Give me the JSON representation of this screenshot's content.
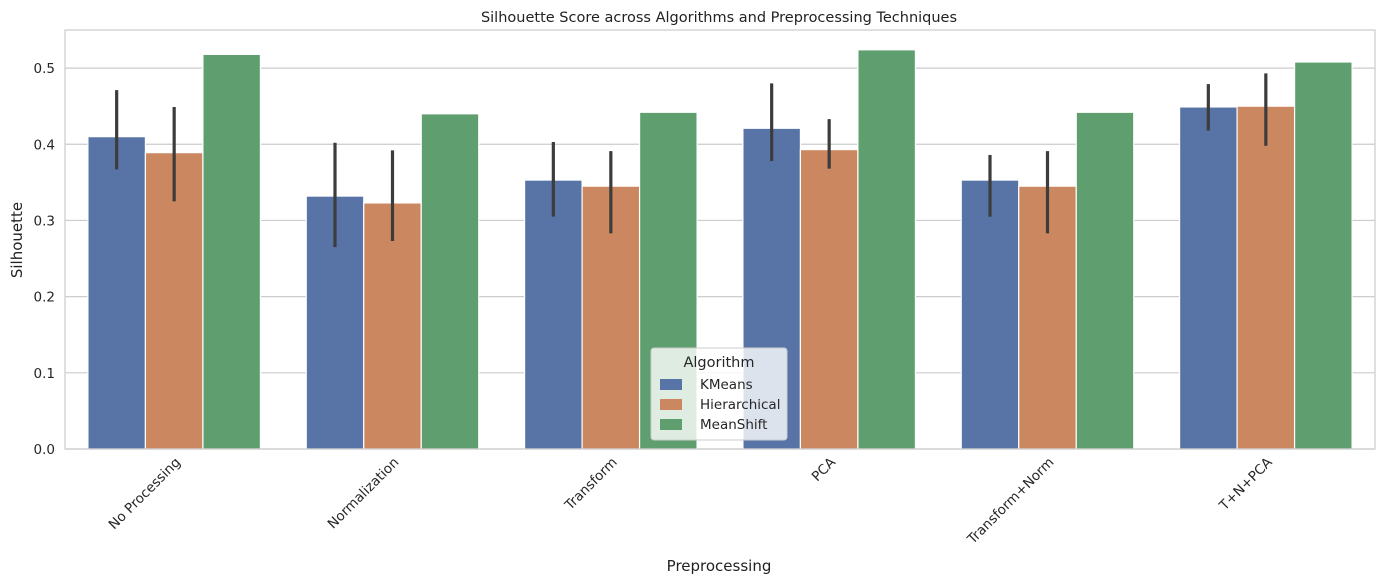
{
  "chart_data": {
    "type": "bar",
    "title": "Silhouette Score across Algorithms and Preprocessing Techniques",
    "xlabel": "Preprocessing",
    "ylabel": "Silhouette",
    "ylim": [
      0,
      0.55
    ],
    "yticks": [
      "0.0",
      "0.1",
      "0.2",
      "0.3",
      "0.4",
      "0.5"
    ],
    "grid": "horizontal",
    "legend": {
      "title": "Algorithm",
      "placement": "lower-center"
    },
    "categories": [
      "No Processing",
      "Normalization",
      "Transform",
      "PCA",
      "Transform+Norm",
      "T+N+PCA"
    ],
    "series": [
      {
        "name": "KMeans",
        "color": "#5874a6",
        "values": [
          0.41,
          0.332,
          0.353,
          0.421,
          0.353,
          0.449
        ],
        "error_low": [
          0.367,
          0.265,
          0.305,
          0.378,
          0.305,
          0.418
        ],
        "error_high": [
          0.471,
          0.402,
          0.403,
          0.48,
          0.386,
          0.479
        ]
      },
      {
        "name": "Hierarchical",
        "color": "#cb8760",
        "values": [
          0.389,
          0.323,
          0.345,
          0.393,
          0.345,
          0.45
        ],
        "error_low": [
          0.325,
          0.273,
          0.283,
          0.368,
          0.283,
          0.398
        ],
        "error_high": [
          0.449,
          0.392,
          0.391,
          0.433,
          0.391,
          0.493
        ]
      },
      {
        "name": "MeanShift",
        "color": "#5f9e6e",
        "values": [
          0.518,
          0.44,
          0.442,
          0.524,
          0.442,
          0.508
        ]
      }
    ]
  }
}
